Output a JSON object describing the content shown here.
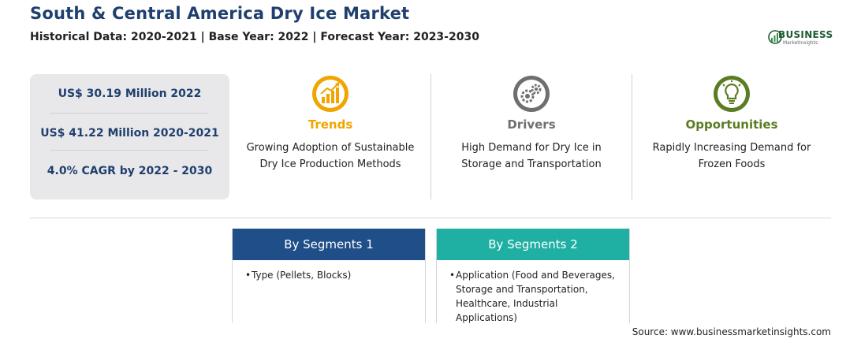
{
  "header": {
    "title": "South & Central America Dry Ice Market",
    "subtitle": "Historical Data: 2020-2021 | Base Year: 2022 | Forecast Year: 2023-2030"
  },
  "logo": {
    "name": "BUSINESS",
    "tagline": "MarketInsights"
  },
  "stats": [
    "US$ 30.19 Million 2022",
    "US$ 41.22 Million 2020-2021",
    "4.0% CAGR by 2022 - 2030"
  ],
  "columns": [
    {
      "label": "Trends",
      "description": "Growing Adoption of Sustainable Dry Ice Production Methods",
      "color": "#f0a500",
      "icon": "chart-growth-icon"
    },
    {
      "label": "Drivers",
      "description": "High Demand for Dry Ice in Storage and Transportation",
      "color": "#6f6f6f",
      "icon": "gears-icon"
    },
    {
      "label": "Opportunities",
      "description": "Rapidly Increasing Demand for Frozen Foods",
      "color": "#5a7d24",
      "icon": "lightbulb-icon"
    }
  ],
  "segments": [
    {
      "title": "By Segments 1",
      "color": "#1f4e89",
      "items": [
        "Type (Pellets, Blocks)"
      ]
    },
    {
      "title": "By Segments 2",
      "color": "#20b0a3",
      "items": [
        "Application (Food and Beverages,",
        "Storage and Transportation,",
        "Healthcare, Industrial Applications)"
      ]
    }
  ],
  "source": "Source: www.businessmarketinsights.com"
}
